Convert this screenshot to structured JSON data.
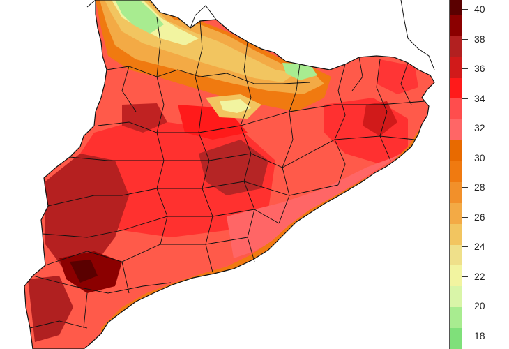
{
  "legend": {
    "ticks": [
      "40",
      "38",
      "36",
      "34",
      "32",
      "30",
      "28",
      "26",
      "24",
      "22",
      "20",
      "18"
    ],
    "bands": [
      {
        "color": "#5a0000"
      },
      {
        "color": "#8b0000"
      },
      {
        "color": "#b22020"
      },
      {
        "color": "#d11a1a"
      },
      {
        "color": "#ff1a1a"
      },
      {
        "color": "#ff4d4d"
      },
      {
        "color": "#ff6666"
      },
      {
        "color": "#e86a00"
      },
      {
        "color": "#f07a10"
      },
      {
        "color": "#f2902a"
      },
      {
        "color": "#f3aa45"
      },
      {
        "color": "#f2c560"
      },
      {
        "color": "#efe08a"
      },
      {
        "color": "#f2f4a0"
      },
      {
        "color": "#d9f5a8"
      },
      {
        "color": "#a8ec90"
      },
      {
        "color": "#7fe07a"
      }
    ]
  },
  "map": {
    "land_base_color": "#ff5a4a",
    "sea_color": "#ffffff",
    "border_color": "#111111"
  }
}
